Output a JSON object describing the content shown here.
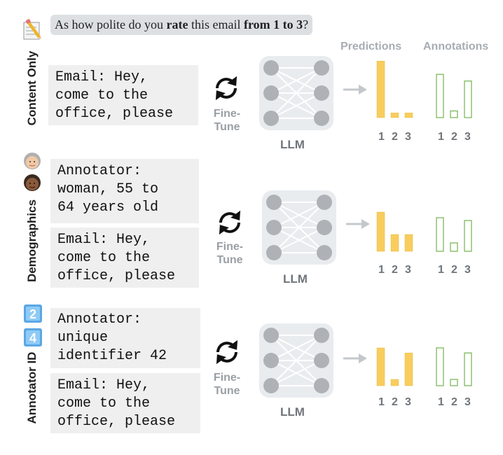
{
  "question": {
    "prefix": "As how polite do you ",
    "b1": "rate",
    "mid": " this email ",
    "b2": "from 1 to 3",
    "suffix": "?"
  },
  "headers": {
    "predictions": "Predictions",
    "annotations": "Annotations"
  },
  "fine_tune_label": "Fine-\nTune",
  "llm_label": "LLM",
  "tick_labels": [
    "1",
    "2",
    "3"
  ],
  "colors": {
    "prediction_fill": "#f8cd5e",
    "annotation_stroke": "#7cb85a",
    "node": "#aeb1b5",
    "panel": "#e9ecef"
  },
  "icons": [
    "memo-pencil-icon",
    "older-person-icon",
    "person-icon",
    "keycap-2-icon",
    "keycap-4-icon"
  ],
  "rows": [
    {
      "side_label": "Content Only",
      "boxes": [
        "Email: Hey,\ncome to the\noffice, please"
      ],
      "predictions": [
        0.85,
        0.07,
        0.07
      ],
      "annotations": [
        0.65,
        0.1,
        0.55
      ]
    },
    {
      "side_label": "Demographics",
      "boxes": [
        "Annotator:\nwoman, 55 to\n64 years old",
        "Email: Hey,\ncome to the\noffice, please"
      ],
      "predictions": [
        0.7,
        0.3,
        0.3
      ],
      "annotations": [
        0.6,
        0.15,
        0.55
      ]
    },
    {
      "side_label": "Annotator ID",
      "boxes": [
        "Annotator:\nunique\nidentifier 42",
        "Email: Hey,\ncome to the\noffice, please"
      ],
      "predictions": [
        0.6,
        0.1,
        0.52
      ],
      "annotations": [
        0.6,
        0.1,
        0.52
      ]
    }
  ]
}
